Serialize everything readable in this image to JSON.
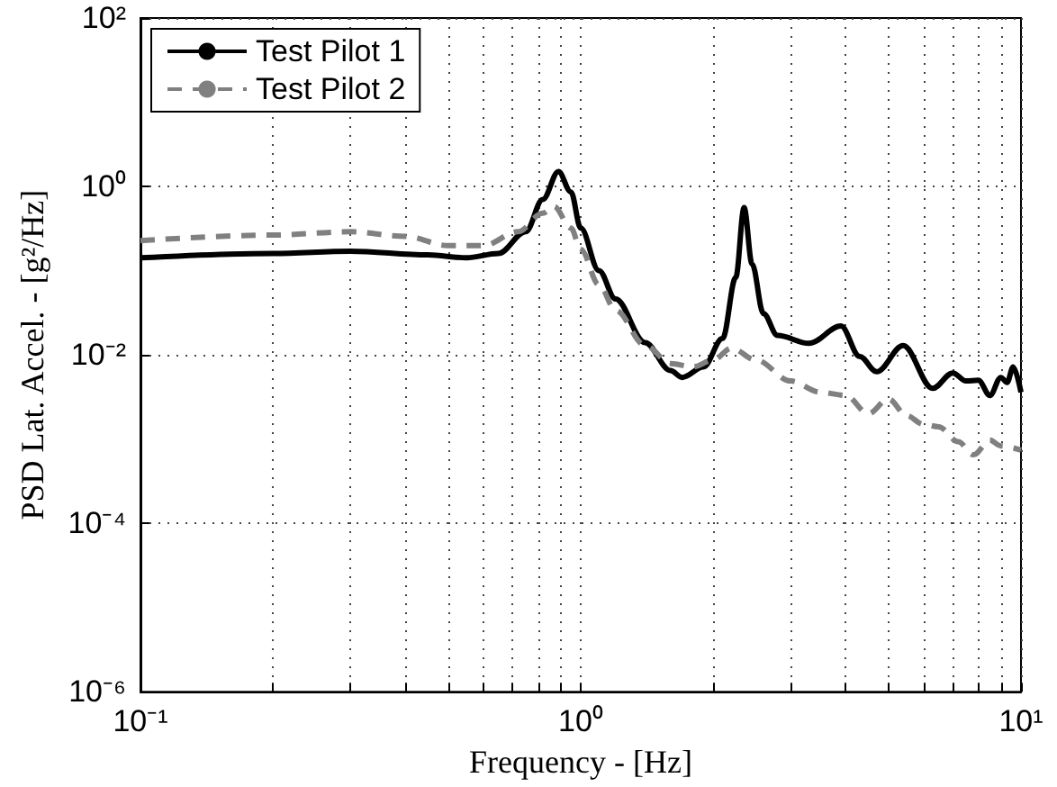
{
  "chart_data": {
    "type": "line",
    "xlabel": "Frequency - [Hz]",
    "ylabel": "PSD Lat. Accel. - [g²/Hz]",
    "log": "xy",
    "grid": true,
    "legend": "top left",
    "marker": "none",
    "xlim": [
      0.1,
      10
    ],
    "ylim": [
      1e-06,
      100
    ],
    "xticks": [
      {
        "value": 0.1,
        "label": "10⁻¹"
      },
      {
        "value": 0.2,
        "label": null
      },
      {
        "value": 0.3,
        "label": null
      },
      {
        "value": 0.4,
        "label": null
      },
      {
        "value": 0.5,
        "label": null
      },
      {
        "value": 0.6,
        "label": null
      },
      {
        "value": 0.7,
        "label": null
      },
      {
        "value": 0.8,
        "label": null
      },
      {
        "value": 0.9,
        "label": null
      },
      {
        "value": 1,
        "label": "10⁰"
      },
      {
        "value": 2,
        "label": null
      },
      {
        "value": 3,
        "label": null
      },
      {
        "value": 4,
        "label": null
      },
      {
        "value": 5,
        "label": null
      },
      {
        "value": 6,
        "label": null
      },
      {
        "value": 7,
        "label": null
      },
      {
        "value": 8,
        "label": null
      },
      {
        "value": 9,
        "label": null
      },
      {
        "value": 10,
        "label": "10¹"
      }
    ],
    "yticks": [
      {
        "value": 1e-06,
        "label": "10⁻⁶"
      },
      {
        "value": 0.0001,
        "label": "10⁻⁴"
      },
      {
        "value": 0.01,
        "label": "10⁻²"
      },
      {
        "value": 1,
        "label": "10⁰"
      },
      {
        "value": 100,
        "label": "10²"
      }
    ],
    "series": [
      {
        "name": "Test Pilot 1",
        "color": "#000000",
        "line_style": "solid",
        "x": [
          0.1,
          0.2,
          0.3,
          0.45,
          0.55,
          0.65,
          0.75,
          0.82,
          0.89,
          0.95,
          1.0,
          1.1,
          1.2,
          1.4,
          1.6,
          1.7,
          1.9,
          2.1,
          2.25,
          2.35,
          2.45,
          2.6,
          2.8,
          3.3,
          3.9,
          4.3,
          4.7,
          5.4,
          6.3,
          7.0,
          7.5,
          8.0,
          8.5,
          9.0,
          9.3,
          9.6,
          10
        ],
        "values": [
          0.142,
          0.16,
          0.17,
          0.154,
          0.142,
          0.16,
          0.29,
          0.7,
          1.5,
          0.86,
          0.32,
          0.1,
          0.046,
          0.014,
          0.0065,
          0.0054,
          0.0072,
          0.0157,
          0.083,
          0.56,
          0.12,
          0.031,
          0.017,
          0.0137,
          0.022,
          0.0096,
          0.0063,
          0.0129,
          0.004,
          0.0061,
          0.0049,
          0.005,
          0.0033,
          0.0054,
          0.0047,
          0.0072,
          0.0036
        ]
      },
      {
        "name": "Test Pilot 2",
        "color": "#808080",
        "line_style": "dashed",
        "x": [
          0.1,
          0.2,
          0.3,
          0.4,
          0.5,
          0.6,
          0.72,
          0.82,
          0.87,
          0.95,
          1.0,
          1.1,
          1.2,
          1.4,
          1.6,
          1.8,
          2.0,
          2.2,
          2.5,
          3.0,
          3.5,
          4.0,
          4.5,
          5.0,
          5.5,
          6.0,
          6.5,
          7.2,
          7.8,
          8.5,
          9.0,
          10
        ],
        "values": [
          0.227,
          0.265,
          0.29,
          0.255,
          0.198,
          0.198,
          0.29,
          0.48,
          0.58,
          0.32,
          0.18,
          0.068,
          0.034,
          0.013,
          0.0079,
          0.0072,
          0.0087,
          0.012,
          0.0087,
          0.0049,
          0.0036,
          0.0033,
          0.002,
          0.003,
          0.0019,
          0.0015,
          0.0014,
          0.00093,
          0.00065,
          0.00097,
          0.00083,
          0.00074
        ]
      }
    ]
  }
}
